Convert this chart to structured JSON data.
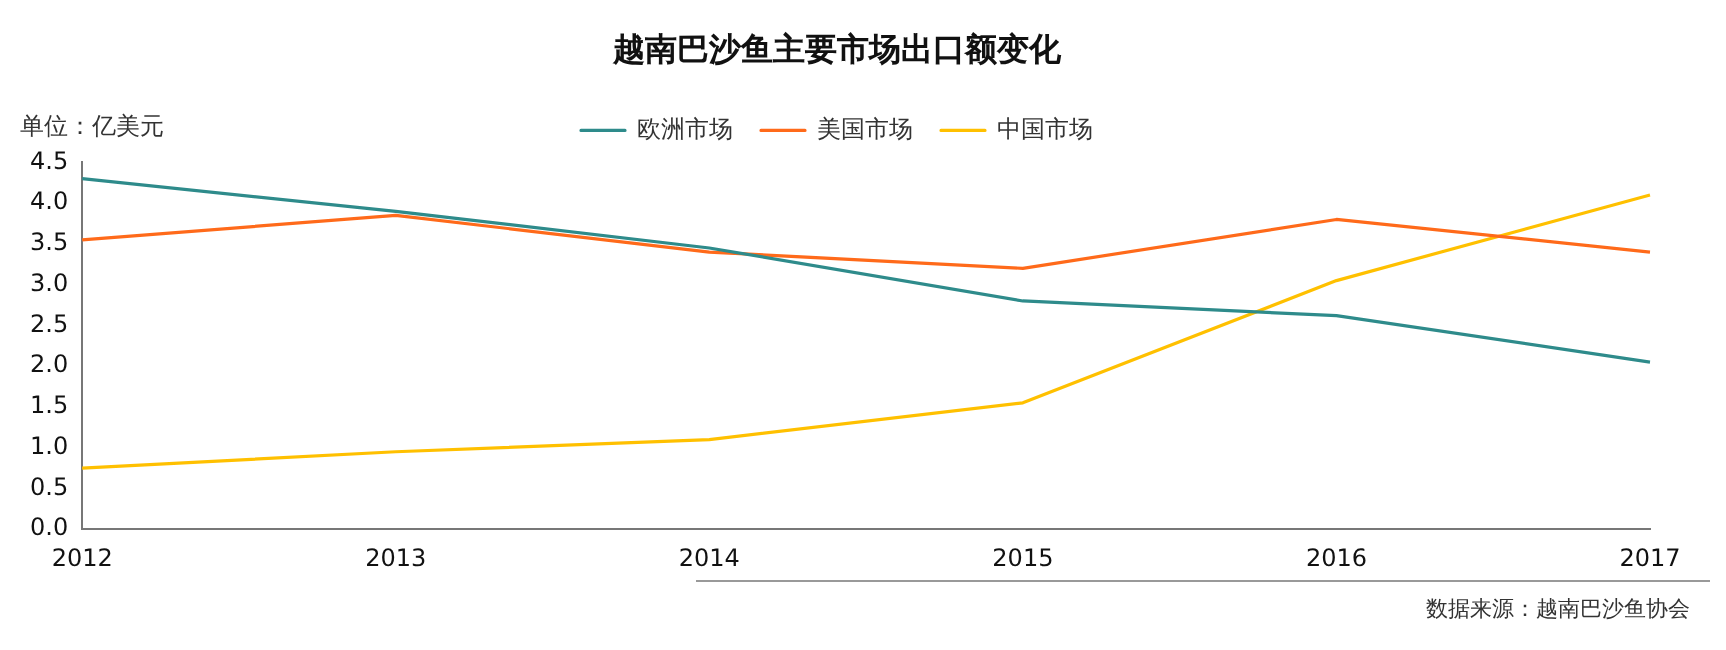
{
  "chart_data": {
    "type": "line",
    "title": "越南巴沙鱼主要市场出口额变化",
    "ylabel": "单位：亿美元",
    "annotations": [
      "数据来源：越南巴沙鱼协会"
    ],
    "categories": [
      "2012",
      "2013",
      "2014",
      "2015",
      "2016",
      "2017"
    ],
    "series": [
      {
        "name": "欧洲市场",
        "color": "#2e8b8b",
        "values": [
          4.3,
          3.9,
          3.45,
          2.8,
          2.62,
          2.05
        ]
      },
      {
        "name": "美国市场",
        "color": "#ff6a1a",
        "values": [
          3.55,
          3.85,
          3.4,
          3.2,
          3.8,
          3.4
        ]
      },
      {
        "name": "中国市场",
        "color": "#ffc000",
        "values": [
          0.75,
          0.95,
          1.1,
          1.55,
          3.05,
          4.1
        ]
      }
    ],
    "ylim": [
      0,
      4.5
    ],
    "yticks": [
      {
        "value": 0,
        "label": "0.0"
      },
      {
        "value": 0.5,
        "label": "0.5"
      },
      {
        "value": 1,
        "label": "1.0"
      },
      {
        "value": 1.5,
        "label": "1.5"
      },
      {
        "value": 2,
        "label": "2.0"
      },
      {
        "value": 2.5,
        "label": "2.5"
      },
      {
        "value": 3,
        "label": "3.0"
      },
      {
        "value": 3.5,
        "label": "3.5"
      },
      {
        "value": 4,
        "label": "4.0"
      },
      {
        "value": 4.5,
        "label": "4.5"
      }
    ],
    "grid": false,
    "legend": "top",
    "marker": "none",
    "line_style": "solid"
  }
}
